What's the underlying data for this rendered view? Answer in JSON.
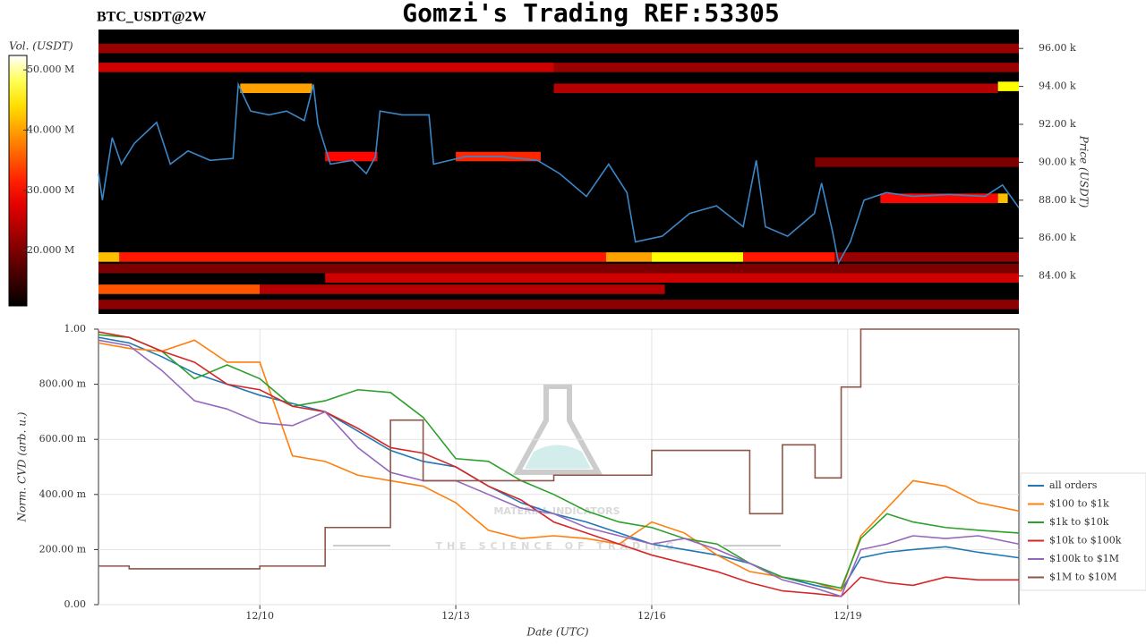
{
  "title": "Gomzi's Trading REF:53305",
  "symbol": "BTC_USDT@2W",
  "watermark": {
    "name": "MATERIAL INDICATORS",
    "tagline": "THE SCIENCE OF TRADING"
  },
  "chart_data": [
    {
      "type": "heatmap",
      "y_label": "Price (USDT)",
      "colorbar_label": "Vol. (USDT)",
      "colormap": "hot",
      "xlim": [
        7.53,
        21.62
      ],
      "ylim": [
        82000,
        97000
      ],
      "yticks": [
        {
          "value": 84000,
          "label": "84.00 k"
        },
        {
          "value": 86000,
          "label": "86.00 k"
        },
        {
          "value": 88000,
          "label": "88.00 k"
        },
        {
          "value": 90000,
          "label": "90.00 k"
        },
        {
          "value": 92000,
          "label": "92.00 k"
        },
        {
          "value": 94000,
          "label": "94.00 k"
        },
        {
          "value": 96000,
          "label": "96.00 k"
        }
      ],
      "clim": [
        10800000,
        52400000
      ],
      "cticks": [
        {
          "value": 20000000,
          "label": "20.000 M"
        },
        {
          "value": 30000000,
          "label": "30.000 M"
        },
        {
          "value": 40000000,
          "label": "40.000 M"
        },
        {
          "value": 50000000,
          "label": "50.000 M"
        }
      ],
      "cells": [
        {
          "x0": 7.53,
          "x1": 21.62,
          "price": 96000,
          "volume": 22000000
        },
        {
          "x0": 7.53,
          "x1": 14.5,
          "price": 95000,
          "volume": 26000000
        },
        {
          "x0": 14.5,
          "x1": 21.62,
          "price": 95000,
          "volume": 22000000
        },
        {
          "x0": 9.7,
          "x1": 10.8,
          "price": 93900,
          "volume": 40000000
        },
        {
          "x0": 14.5,
          "x1": 21.3,
          "price": 93900,
          "volume": 24000000
        },
        {
          "x0": 21.3,
          "x1": 21.62,
          "price": 94000,
          "volume": 46000000
        },
        {
          "x0": 11.0,
          "x1": 11.8,
          "price": 90300,
          "volume": 30000000
        },
        {
          "x0": 13.0,
          "x1": 14.3,
          "price": 90300,
          "volume": 32000000
        },
        {
          "x0": 18.5,
          "x1": 21.62,
          "price": 90000,
          "volume": 20000000
        },
        {
          "x0": 19.5,
          "x1": 21.3,
          "price": 88100,
          "volume": 30000000
        },
        {
          "x0": 21.3,
          "x1": 21.45,
          "price": 88100,
          "volume": 42000000
        },
        {
          "x0": 7.53,
          "x1": 7.85,
          "price": 85000,
          "volume": 42000000
        },
        {
          "x0": 7.85,
          "x1": 15.3,
          "price": 85000,
          "volume": 31000000
        },
        {
          "x0": 15.3,
          "x1": 16.0,
          "price": 85000,
          "volume": 40000000
        },
        {
          "x0": 16.0,
          "x1": 17.4,
          "price": 85000,
          "volume": 46000000
        },
        {
          "x0": 17.4,
          "x1": 18.8,
          "price": 85000,
          "volume": 31000000
        },
        {
          "x0": 18.8,
          "x1": 21.62,
          "price": 85000,
          "volume": 22000000
        },
        {
          "x0": 7.53,
          "x1": 21.62,
          "price": 84400,
          "volume": 20000000
        },
        {
          "x0": 11.0,
          "x1": 21.62,
          "price": 83900,
          "volume": 26000000
        },
        {
          "x0": 7.53,
          "x1": 10.0,
          "price": 83300,
          "volume": 35000000
        },
        {
          "x0": 10.0,
          "x1": 16.2,
          "price": 83300,
          "volume": 24000000
        },
        {
          "x0": 7.53,
          "x1": 21.62,
          "price": 82500,
          "volume": 21000000
        }
      ],
      "color": "#3a87c8",
      "x": [
        7.53,
        7.59,
        7.74,
        7.88,
        8.08,
        8.42,
        8.63,
        8.9,
        9.24,
        9.59,
        9.67,
        9.86,
        10.14,
        10.41,
        10.68,
        10.82,
        10.89,
        11.08,
        11.42,
        11.63,
        11.77,
        11.84,
        12.18,
        12.59,
        12.66,
        13.15,
        13.7,
        14.25,
        14.59,
        15.0,
        15.34,
        15.62,
        15.75,
        16.16,
        16.58,
        16.99,
        17.4,
        17.6,
        17.74,
        18.08,
        18.49,
        18.6,
        18.77,
        18.86,
        19.04,
        19.25,
        19.59,
        20.0,
        20.55,
        21.1,
        21.37,
        21.62
      ],
      "values": [
        89400,
        88000,
        91300,
        89900,
        91000,
        92100,
        89900,
        90600,
        90100,
        90200,
        94100,
        92700,
        92500,
        92700,
        92200,
        94100,
        92000,
        89900,
        90100,
        89400,
        90300,
        92700,
        92500,
        92500,
        89900,
        90300,
        90300,
        90100,
        89400,
        88200,
        89900,
        88400,
        85800,
        86100,
        87300,
        87700,
        86600,
        90100,
        86600,
        86100,
        87300,
        88900,
        86300,
        84700,
        85800,
        88000,
        88400,
        88200,
        88300,
        88200,
        88800,
        87600
      ]
    },
    {
      "type": "line",
      "x_label": "Date (UTC)",
      "y_label": "Norm. CVD (arb. u.)",
      "grid": true,
      "legend": "right",
      "xlim": [
        7.53,
        21.62
      ],
      "ylim": [
        0,
        1
      ],
      "xticks": [
        {
          "value": 10,
          "label": "12/10"
        },
        {
          "value": 13,
          "label": "12/13"
        },
        {
          "value": 16,
          "label": "12/16"
        },
        {
          "value": 19,
          "label": "12/19"
        }
      ],
      "yticks": [
        {
          "value": 0,
          "label": "0.00"
        },
        {
          "value": 0.2,
          "label": "200.00 m"
        },
        {
          "value": 0.4,
          "label": "400.00 m"
        },
        {
          "value": 0.6,
          "label": "600.00 m"
        },
        {
          "value": 0.8,
          "label": "800.00 m"
        },
        {
          "value": 1,
          "label": "1.00"
        }
      ],
      "x": [
        7.53,
        8,
        8.5,
        9,
        9.5,
        10,
        10.5,
        11,
        11.5,
        12,
        12.5,
        13,
        13.5,
        14,
        14.5,
        15,
        15.5,
        16,
        16.5,
        17,
        17.5,
        18,
        18.5,
        18.9,
        19.2,
        19.6,
        20,
        20.5,
        21,
        21.62
      ],
      "series": [
        {
          "name": "all orders",
          "color": "#1f77b4",
          "values": [
            0.97,
            0.95,
            0.9,
            0.84,
            0.8,
            0.76,
            0.73,
            0.7,
            0.63,
            0.56,
            0.52,
            0.5,
            0.43,
            0.37,
            0.33,
            0.3,
            0.26,
            0.22,
            0.2,
            0.18,
            0.15,
            0.1,
            0.07,
            0.05,
            0.17,
            0.19,
            0.2,
            0.21,
            0.19,
            0.17
          ]
        },
        {
          "name": "$100 to $1k",
          "color": "#ff7f0e",
          "values": [
            0.95,
            0.93,
            0.92,
            0.96,
            0.88,
            0.88,
            0.54,
            0.52,
            0.47,
            0.45,
            0.43,
            0.37,
            0.27,
            0.24,
            0.25,
            0.24,
            0.22,
            0.3,
            0.26,
            0.18,
            0.12,
            0.1,
            0.08,
            0.05,
            0.25,
            0.35,
            0.45,
            0.43,
            0.37,
            0.34
          ]
        },
        {
          "name": "$1k to $10k",
          "color": "#2ca02c",
          "values": [
            0.98,
            0.97,
            0.92,
            0.82,
            0.87,
            0.82,
            0.72,
            0.74,
            0.78,
            0.77,
            0.68,
            0.53,
            0.52,
            0.45,
            0.4,
            0.34,
            0.3,
            0.28,
            0.24,
            0.22,
            0.15,
            0.1,
            0.08,
            0.06,
            0.24,
            0.33,
            0.3,
            0.28,
            0.27,
            0.26
          ]
        },
        {
          "name": "$10k to $100k",
          "color": "#d62728",
          "values": [
            0.99,
            0.97,
            0.92,
            0.88,
            0.8,
            0.78,
            0.72,
            0.7,
            0.64,
            0.57,
            0.55,
            0.5,
            0.43,
            0.38,
            0.3,
            0.26,
            0.22,
            0.18,
            0.15,
            0.12,
            0.08,
            0.05,
            0.04,
            0.03,
            0.1,
            0.08,
            0.07,
            0.1,
            0.09,
            0.09
          ]
        },
        {
          "name": "$100k to $1M",
          "color": "#9467bd",
          "values": [
            0.96,
            0.94,
            0.85,
            0.74,
            0.71,
            0.66,
            0.65,
            0.7,
            0.57,
            0.48,
            0.45,
            0.45,
            0.4,
            0.35,
            0.33,
            0.28,
            0.25,
            0.22,
            0.24,
            0.2,
            0.15,
            0.09,
            0.06,
            0.03,
            0.2,
            0.22,
            0.25,
            0.24,
            0.25,
            0.22
          ]
        },
        {
          "name": "$1M to $10M",
          "color": "#8c564b",
          "step": true,
          "values": [
            0.14,
            0.13,
            0.13,
            0.13,
            0.13,
            0.14,
            0.14,
            0.28,
            0.28,
            0.67,
            0.45,
            0.45,
            0.45,
            0.45,
            0.47,
            0.47,
            0.47,
            0.56,
            0.56,
            0.56,
            0.33,
            0.58,
            0.46,
            0.79,
            1.0,
            1.0,
            1.0,
            1.0,
            1.0,
            1.0
          ]
        }
      ]
    }
  ]
}
